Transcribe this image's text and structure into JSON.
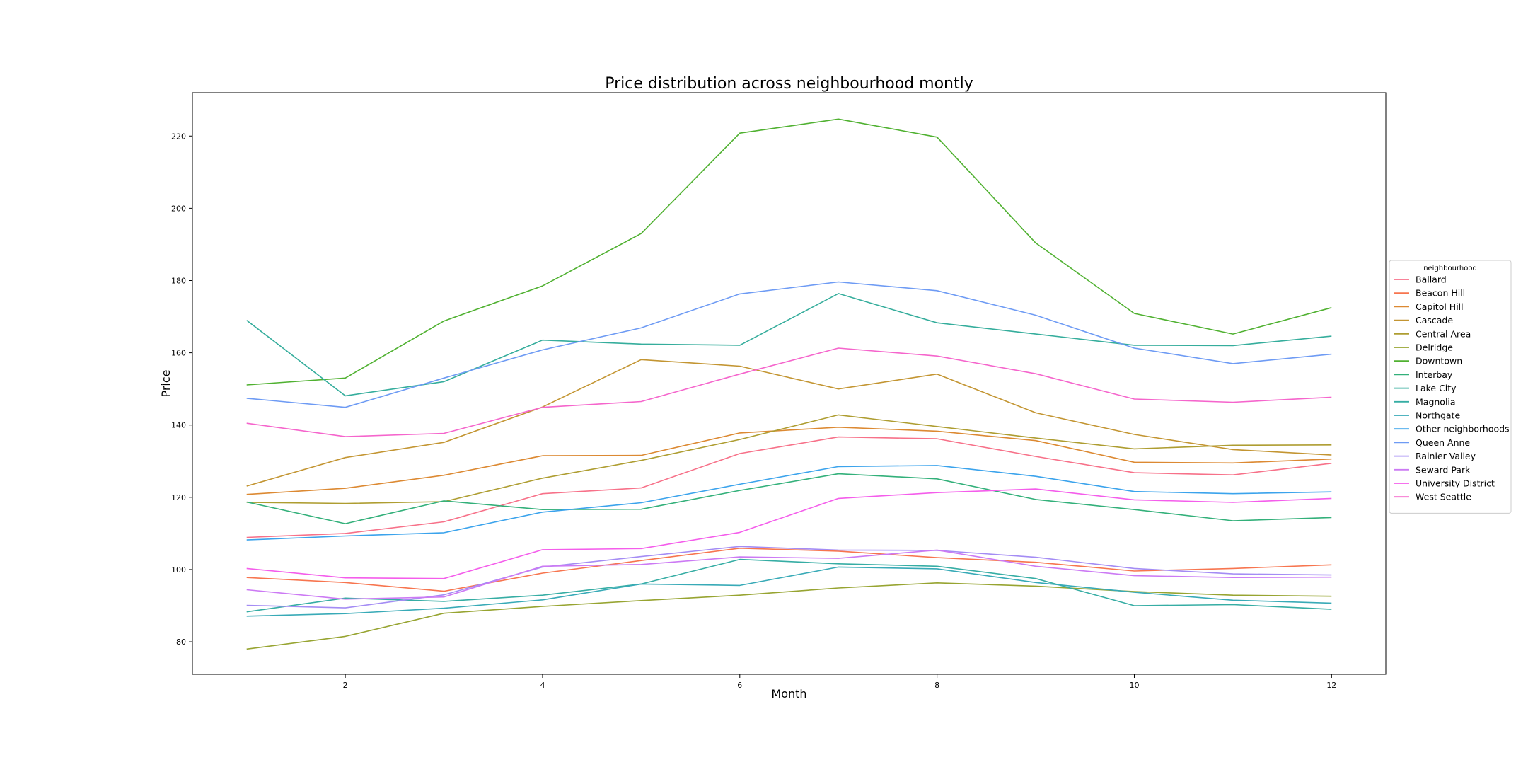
{
  "chart_data": {
    "type": "line",
    "title": "Price distribution across neighbourhood montly",
    "xlabel": "Month",
    "ylabel": "Price",
    "xlim": [
      0.45,
      12.55
    ],
    "ylim": [
      71,
      232
    ],
    "x_ticks": [
      2,
      4,
      6,
      8,
      10,
      12
    ],
    "y_ticks": [
      80,
      100,
      120,
      140,
      160,
      180,
      200,
      220
    ],
    "grid": false,
    "legend": {
      "title": "neighbourhood",
      "placement": "center-right"
    },
    "x": [
      1,
      2,
      3,
      4,
      5,
      6,
      7,
      8,
      9,
      10,
      11,
      12
    ],
    "series": [
      {
        "name": "Ballard",
        "color": "#f77189",
        "values": [
          108.9,
          110.0,
          113.2,
          121.0,
          122.6,
          132.1,
          136.7,
          136.2,
          131.3,
          126.8,
          126.2,
          129.4
        ]
      },
      {
        "name": "Beacon Hill",
        "color": "#f7754f",
        "values": [
          97.8,
          96.4,
          94.0,
          99.0,
          102.5,
          105.9,
          105.1,
          103.3,
          102.0,
          99.6,
          100.3,
          101.3
        ]
      },
      {
        "name": "Capitol Hill",
        "color": "#dc8932",
        "values": [
          120.8,
          122.5,
          126.1,
          131.5,
          131.6,
          137.8,
          139.4,
          138.3,
          135.7,
          129.7,
          129.5,
          130.6
        ]
      },
      {
        "name": "Cascade",
        "color": "#c39532",
        "values": [
          123.1,
          131.0,
          135.2,
          145.0,
          158.1,
          156.3,
          150.0,
          154.1,
          143.4,
          137.4,
          133.2,
          131.7
        ]
      },
      {
        "name": "Central Area",
        "color": "#ae9d31",
        "values": [
          118.6,
          118.3,
          118.8,
          125.3,
          130.2,
          136.0,
          142.8,
          139.6,
          136.4,
          133.4,
          134.4,
          134.5
        ]
      },
      {
        "name": "Delridge",
        "color": "#97a431",
        "values": [
          78.0,
          81.5,
          87.9,
          89.8,
          91.4,
          92.9,
          94.9,
          96.3,
          95.4,
          93.9,
          92.9,
          92.6
        ]
      },
      {
        "name": "Downtown",
        "color": "#50b131",
        "values": [
          151.1,
          153.0,
          168.8,
          178.5,
          193.0,
          220.8,
          224.7,
          219.7,
          190.4,
          170.9,
          165.2,
          172.5
        ]
      },
      {
        "name": "Interbay",
        "color": "#33b07a",
        "values": [
          118.7,
          112.7,
          119.0,
          116.6,
          116.7,
          121.9,
          126.5,
          125.1,
          119.4,
          116.6,
          113.5,
          114.4
        ]
      },
      {
        "name": "Lake City",
        "color": "#35ad9c",
        "values": [
          169.0,
          148.1,
          152.0,
          163.5,
          162.4,
          162.1,
          176.4,
          168.3,
          165.2,
          162.1,
          162.0,
          164.6
        ]
      },
      {
        "name": "Magnolia",
        "color": "#36ada4",
        "values": [
          88.3,
          92.1,
          91.2,
          92.9,
          96.0,
          102.8,
          101.6,
          100.9,
          97.5,
          90.0,
          90.3,
          89.0
        ]
      },
      {
        "name": "Northgate",
        "color": "#38aab7",
        "values": [
          87.1,
          87.8,
          89.3,
          91.6,
          96.0,
          95.6,
          100.7,
          100.2,
          96.4,
          93.7,
          91.5,
          90.7
        ]
      },
      {
        "name": "Other neighborhoods",
        "color": "#3ba3ec",
        "values": [
          108.2,
          109.3,
          110.2,
          115.9,
          118.5,
          123.6,
          128.5,
          128.8,
          125.8,
          121.6,
          121.0,
          121.5
        ]
      },
      {
        "name": "Queen Anne",
        "color": "#6e9bf4",
        "values": [
          147.4,
          144.9,
          153.0,
          160.8,
          166.9,
          176.3,
          179.6,
          177.2,
          170.4,
          161.3,
          157.0,
          159.6
        ]
      },
      {
        "name": "Rainier Valley",
        "color": "#a48cf4",
        "values": [
          90.1,
          89.4,
          93.0,
          100.7,
          103.6,
          106.4,
          105.4,
          105.3,
          103.4,
          100.3,
          98.8,
          98.5
        ]
      },
      {
        "name": "Seward Park",
        "color": "#cc7af4",
        "values": [
          94.4,
          91.8,
          92.4,
          100.9,
          101.4,
          103.5,
          103.1,
          105.4,
          100.9,
          98.3,
          97.8,
          97.9
        ]
      },
      {
        "name": "University District",
        "color": "#f45deb",
        "values": [
          100.3,
          97.7,
          97.5,
          105.5,
          105.8,
          110.3,
          119.7,
          121.3,
          122.3,
          119.3,
          118.6,
          119.7
        ]
      },
      {
        "name": "West Seattle",
        "color": "#f565cc",
        "values": [
          140.5,
          136.8,
          137.7,
          144.9,
          146.5,
          154.1,
          161.3,
          159.1,
          154.2,
          147.2,
          146.3,
          147.7
        ]
      }
    ]
  }
}
